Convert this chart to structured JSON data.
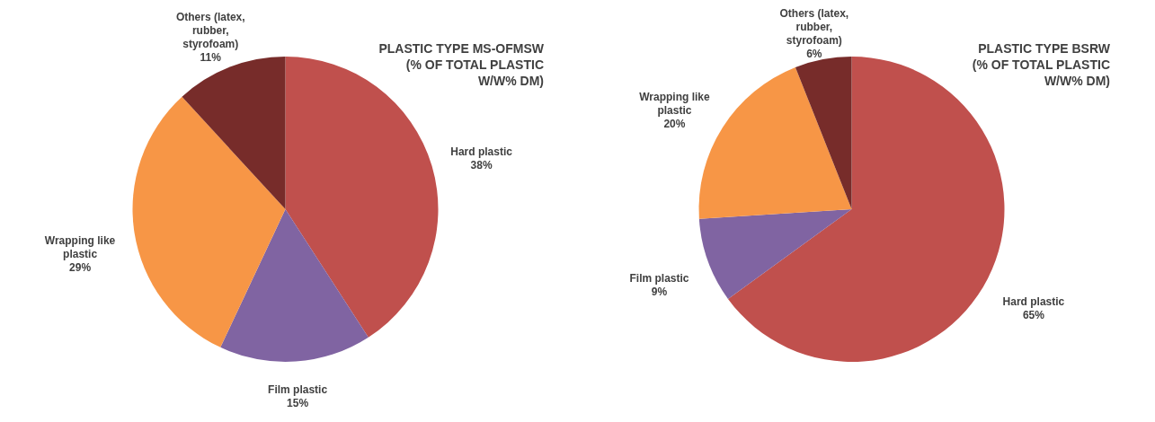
{
  "chart_data": [
    {
      "type": "pie",
      "title": "PLASTIC TYPE MS-OFMSW (% OF TOTAL PLASTIC W/W% DM)",
      "categories": [
        "Hard plastic",
        "Film plastic",
        "Wrapping like plastic",
        "Others (latex, rubber, styrofoam)"
      ],
      "values": [
        38,
        15,
        29,
        11
      ],
      "colors": [
        "#c0504d",
        "#8064a2",
        "#f79646",
        "#772c2a"
      ],
      "value_labels": [
        "38%",
        "15%",
        "29%",
        "11%"
      ]
    },
    {
      "type": "pie",
      "title": "PLASTIC TYPE BSRW (% OF TOTAL PLASTIC W/W% DM)",
      "categories": [
        "Hard plastic",
        "Film plastic",
        "Wrapping like plastic",
        "Others (latex, rubber, styrofoam)"
      ],
      "values": [
        65,
        9,
        20,
        6
      ],
      "colors": [
        "#c0504d",
        "#8064a2",
        "#f79646",
        "#772c2a"
      ],
      "value_labels": [
        "65%",
        "9%",
        "20%",
        "6%"
      ]
    }
  ]
}
